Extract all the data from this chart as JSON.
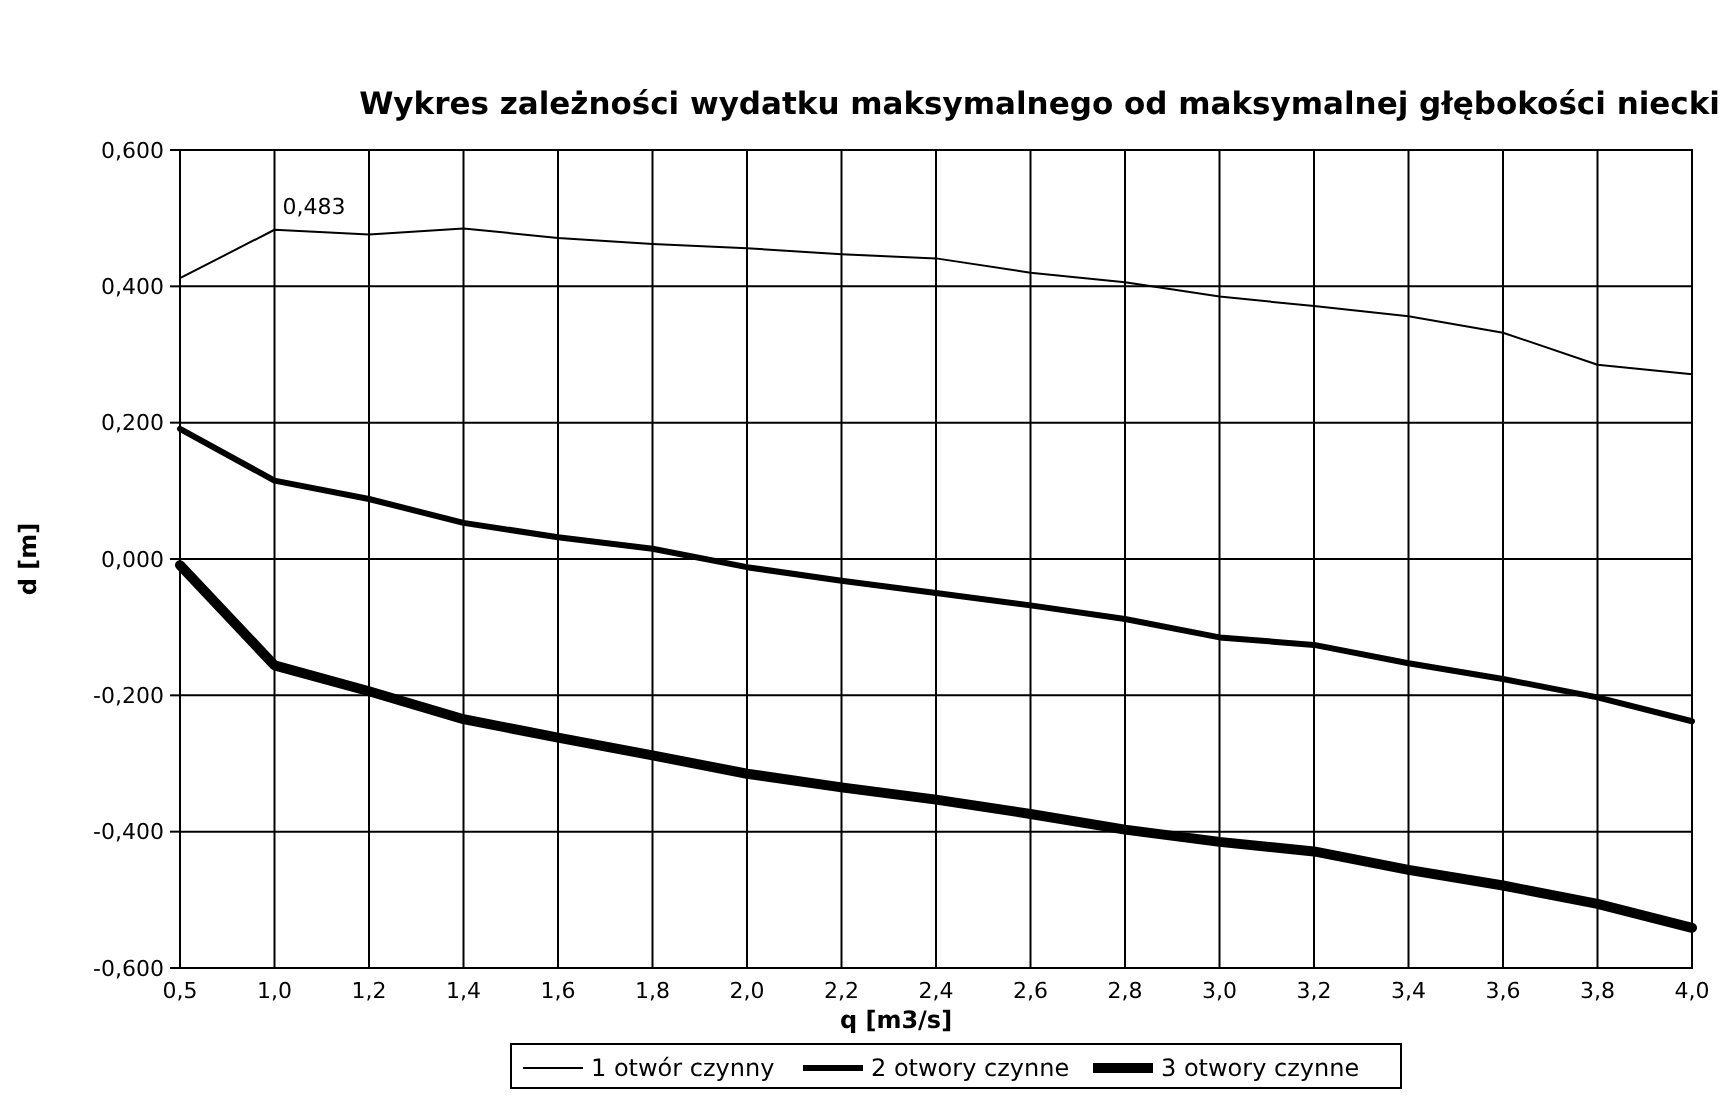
{
  "chart_data": {
    "type": "line",
    "title": "Wykres zależności wydatku maksymalnego od maksymalnej głębokości niecki",
    "xlabel": "q [m3/s]",
    "ylabel": "d [m]",
    "categories": [
      "0,5",
      "1,0",
      "1,2",
      "1,4",
      "1,6",
      "1,8",
      "2,0",
      "2,2",
      "2,4",
      "2,6",
      "2,8",
      "3,0",
      "3,2",
      "3,4",
      "3,6",
      "3,8",
      "4,0"
    ],
    "series": [
      {
        "name": "1 otwór czynny",
        "color": "#000000",
        "values": [
          0.412,
          0.483,
          0.476,
          0.485,
          0.471,
          0.462,
          0.456,
          0.447,
          0.441,
          0.42,
          0.406,
          0.385,
          0.371,
          0.356,
          0.332,
          0.285,
          0.271
        ]
      },
      {
        "name": "2 otwory czynne",
        "color": "#000000",
        "values": [
          0.191,
          0.115,
          0.088,
          0.053,
          0.032,
          0.015,
          -0.012,
          -0.032,
          -0.05,
          -0.068,
          -0.088,
          -0.115,
          -0.126,
          -0.153,
          -0.176,
          -0.203,
          -0.238
        ]
      },
      {
        "name": "3 otwory czynne",
        "color": "#000000",
        "values": [
          -0.009,
          -0.156,
          -0.194,
          -0.235,
          -0.262,
          -0.288,
          -0.315,
          -0.335,
          -0.353,
          -0.374,
          -0.397,
          -0.415,
          -0.429,
          -0.456,
          -0.479,
          -0.506,
          -0.541
        ]
      }
    ],
    "ylim": [
      -0.6,
      0.6
    ],
    "yticks": [
      {
        "value": -0.6,
        "label": "-0,600"
      },
      {
        "value": -0.4,
        "label": "-0,400"
      },
      {
        "value": -0.2,
        "label": "-0,200"
      },
      {
        "value": 0,
        "label": "0,000"
      },
      {
        "value": 0.2,
        "label": "0,200"
      },
      {
        "value": 0.4,
        "label": "0,400"
      },
      {
        "value": 0.6,
        "label": "0,600"
      }
    ],
    "grid": true,
    "legend": "bottom",
    "marker": "none",
    "line_style": "solid",
    "annotations": [
      {
        "text": "0,483",
        "x": "1,0",
        "y": 0.483
      }
    ]
  }
}
